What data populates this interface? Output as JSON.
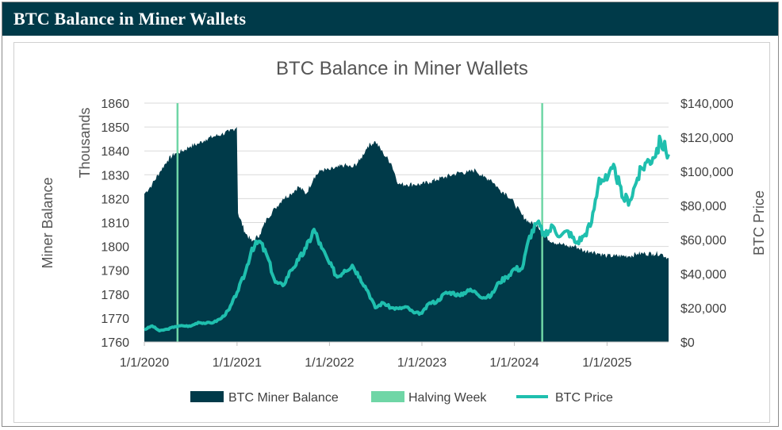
{
  "header": {
    "title": "BTC Balance in Miner Wallets"
  },
  "chart_data": {
    "type": "area",
    "title": "BTC Balance in Miner Wallets",
    "y_left_label": "Miner Balance",
    "y_left_unit": "Thousands",
    "y_right_label": "BTC Price",
    "y_left_range": [
      1760,
      1860
    ],
    "y_right_range": [
      0,
      140000
    ],
    "y_left_ticks": [
      "1760",
      "1770",
      "1780",
      "1790",
      "1800",
      "1810",
      "1820",
      "1830",
      "1840",
      "1850",
      "1860"
    ],
    "y_right_ticks": [
      "$0",
      "$20,000",
      "$40,000",
      "$60,000",
      "$80,000",
      "$100,000",
      "$120,000",
      "$140,000"
    ],
    "x_ticks": [
      "1/1/2020",
      "1/1/2021",
      "1/1/2022",
      "1/1/2023",
      "1/1/2024",
      "1/1/2025"
    ],
    "x_range": [
      "2020-01-01",
      "2025-09-01"
    ],
    "legend": [
      "BTC Miner Balance",
      "Halving Week",
      "BTC Price"
    ],
    "legend_position": "bottom",
    "colors": {
      "balance": "#003a49",
      "halving": "#6fd6a6",
      "price": "#1fbfae",
      "header": "#003a49"
    },
    "halvings": [
      "2020-05-11",
      "2024-04-20"
    ],
    "series": [
      {
        "name": "BTC Miner Balance",
        "axis": "left",
        "points": [
          [
            "2020-01-01",
            1822
          ],
          [
            "2020-02-01",
            1826
          ],
          [
            "2020-03-01",
            1831
          ],
          [
            "2020-04-01",
            1836
          ],
          [
            "2020-05-01",
            1839
          ],
          [
            "2020-06-01",
            1840
          ],
          [
            "2020-07-01",
            1842
          ],
          [
            "2020-08-01",
            1843
          ],
          [
            "2020-09-01",
            1845
          ],
          [
            "2020-10-01",
            1846
          ],
          [
            "2020-11-01",
            1847
          ],
          [
            "2020-12-01",
            1848
          ],
          [
            "2020-12-31",
            1850
          ],
          [
            "2021-01-05",
            1814
          ],
          [
            "2021-02-01",
            1806
          ],
          [
            "2021-03-01",
            1802
          ],
          [
            "2021-04-01",
            1805
          ],
          [
            "2021-05-01",
            1812
          ],
          [
            "2021-06-01",
            1816
          ],
          [
            "2021-07-01",
            1820
          ],
          [
            "2021-08-01",
            1822
          ],
          [
            "2021-09-01",
            1825
          ],
          [
            "2021-10-01",
            1822
          ],
          [
            "2021-11-01",
            1829
          ],
          [
            "2021-12-01",
            1832
          ],
          [
            "2022-01-01",
            1832
          ],
          [
            "2022-02-01",
            1833
          ],
          [
            "2022-03-01",
            1834
          ],
          [
            "2022-04-01",
            1833
          ],
          [
            "2022-05-01",
            1836
          ],
          [
            "2022-06-01",
            1842
          ],
          [
            "2022-07-01",
            1844
          ],
          [
            "2022-08-01",
            1839
          ],
          [
            "2022-09-01",
            1835
          ],
          [
            "2022-10-01",
            1826
          ],
          [
            "2022-11-01",
            1826
          ],
          [
            "2022-12-01",
            1826
          ],
          [
            "2023-01-01",
            1826
          ],
          [
            "2023-02-01",
            1827
          ],
          [
            "2023-03-01",
            1828
          ],
          [
            "2023-04-01",
            1829
          ],
          [
            "2023-05-01",
            1830
          ],
          [
            "2023-06-01",
            1831
          ],
          [
            "2023-07-01",
            1831
          ],
          [
            "2023-08-01",
            1832
          ],
          [
            "2023-09-01",
            1829
          ],
          [
            "2023-10-01",
            1828
          ],
          [
            "2023-11-01",
            1824
          ],
          [
            "2023-12-01",
            1822
          ],
          [
            "2024-01-01",
            1818
          ],
          [
            "2024-02-01",
            1813
          ],
          [
            "2024-03-01",
            1810
          ],
          [
            "2024-04-01",
            1809
          ],
          [
            "2024-05-01",
            1804
          ],
          [
            "2024-06-01",
            1802
          ],
          [
            "2024-07-01",
            1801
          ],
          [
            "2024-08-01",
            1800
          ],
          [
            "2024-09-01",
            1800
          ],
          [
            "2024-10-01",
            1798
          ],
          [
            "2024-11-01",
            1798
          ],
          [
            "2024-12-01",
            1797
          ],
          [
            "2025-01-01",
            1796
          ],
          [
            "2025-02-01",
            1796
          ],
          [
            "2025-03-01",
            1796
          ],
          [
            "2025-04-01",
            1796
          ],
          [
            "2025-05-01",
            1797
          ],
          [
            "2025-06-01",
            1797
          ],
          [
            "2025-07-01",
            1797
          ],
          [
            "2025-08-01",
            1797
          ],
          [
            "2025-09-01",
            1795
          ]
        ]
      },
      {
        "name": "BTC Price",
        "axis": "right",
        "points": [
          [
            "2020-01-01",
            7200
          ],
          [
            "2020-02-01",
            9400
          ],
          [
            "2020-03-01",
            6500
          ],
          [
            "2020-04-01",
            7500
          ],
          [
            "2020-05-01",
            9000
          ],
          [
            "2020-06-01",
            9500
          ],
          [
            "2020-07-01",
            9200
          ],
          [
            "2020-08-01",
            11500
          ],
          [
            "2020-09-01",
            11000
          ],
          [
            "2020-10-01",
            11500
          ],
          [
            "2020-11-01",
            14000
          ],
          [
            "2020-12-01",
            19000
          ],
          [
            "2021-01-01",
            29000
          ],
          [
            "2021-02-01",
            40000
          ],
          [
            "2021-03-01",
            55000
          ],
          [
            "2021-04-01",
            59000
          ],
          [
            "2021-05-01",
            50000
          ],
          [
            "2021-06-01",
            35000
          ],
          [
            "2021-07-01",
            33000
          ],
          [
            "2021-08-01",
            42000
          ],
          [
            "2021-09-01",
            48000
          ],
          [
            "2021-10-01",
            55000
          ],
          [
            "2021-11-01",
            66000
          ],
          [
            "2021-12-01",
            55000
          ],
          [
            "2022-01-01",
            46000
          ],
          [
            "2022-02-01",
            38000
          ],
          [
            "2022-03-01",
            42000
          ],
          [
            "2022-04-01",
            45000
          ],
          [
            "2022-05-01",
            38000
          ],
          [
            "2022-06-01",
            30000
          ],
          [
            "2022-07-01",
            20000
          ],
          [
            "2022-08-01",
            23000
          ],
          [
            "2022-09-01",
            20000
          ],
          [
            "2022-10-01",
            19500
          ],
          [
            "2022-11-01",
            20500
          ],
          [
            "2022-12-01",
            17000
          ],
          [
            "2023-01-01",
            16800
          ],
          [
            "2023-02-01",
            23000
          ],
          [
            "2023-03-01",
            23500
          ],
          [
            "2023-04-01",
            28500
          ],
          [
            "2023-05-01",
            29000
          ],
          [
            "2023-06-01",
            27000
          ],
          [
            "2023-07-01",
            30500
          ],
          [
            "2023-08-01",
            29200
          ],
          [
            "2023-09-01",
            26000
          ],
          [
            "2023-10-01",
            27000
          ],
          [
            "2023-11-01",
            35000
          ],
          [
            "2023-12-01",
            38000
          ],
          [
            "2024-01-01",
            43000
          ],
          [
            "2024-02-01",
            43000
          ],
          [
            "2024-03-01",
            62000
          ],
          [
            "2024-04-01",
            70000
          ],
          [
            "2024-05-01",
            62000
          ],
          [
            "2024-06-01",
            68000
          ],
          [
            "2024-07-01",
            62000
          ],
          [
            "2024-08-01",
            65000
          ],
          [
            "2024-09-01",
            58000
          ],
          [
            "2024-10-01",
            62000
          ],
          [
            "2024-11-01",
            70000
          ],
          [
            "2024-12-01",
            96000
          ],
          [
            "2025-01-01",
            95000
          ],
          [
            "2025-02-01",
            102000
          ],
          [
            "2025-03-01",
            85000
          ],
          [
            "2025-04-01",
            83000
          ],
          [
            "2025-05-01",
            96000
          ],
          [
            "2025-06-01",
            105000
          ],
          [
            "2025-07-01",
            108000
          ],
          [
            "2025-08-01",
            118000
          ],
          [
            "2025-09-01",
            110000
          ]
        ]
      }
    ]
  }
}
